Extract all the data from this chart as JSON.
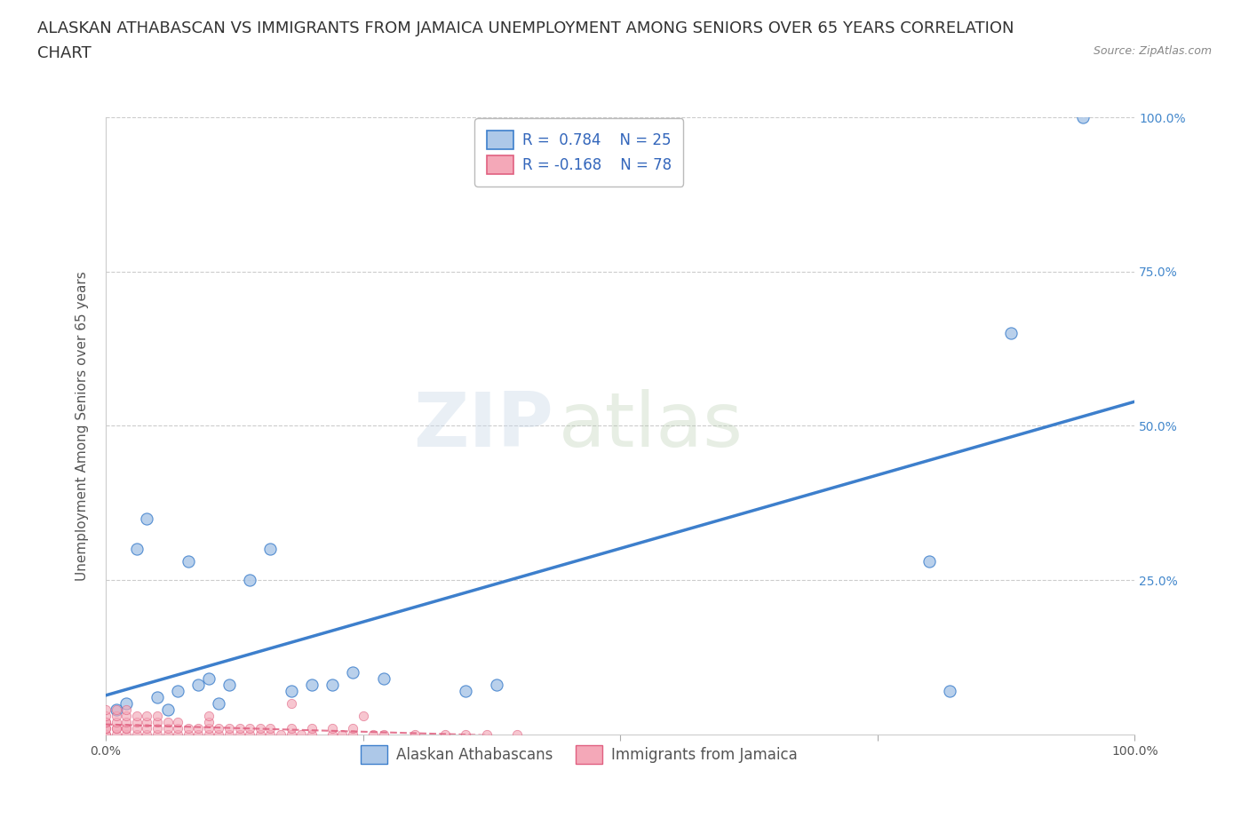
{
  "title_line1": "ALASKAN ATHABASCAN VS IMMIGRANTS FROM JAMAICA UNEMPLOYMENT AMONG SENIORS OVER 65 YEARS CORRELATION",
  "title_line2": "CHART",
  "source": "Source: ZipAtlas.com",
  "ylabel": "Unemployment Among Seniors over 65 years",
  "xlim": [
    0,
    1.0
  ],
  "ylim": [
    0,
    1.0
  ],
  "blue_R": 0.784,
  "blue_N": 25,
  "pink_R": -0.168,
  "pink_N": 78,
  "blue_color": "#adc8e8",
  "pink_color": "#f4a8b8",
  "blue_line_color": "#3d7fcc",
  "pink_line_color": "#e06080",
  "grid_color": "#cccccc",
  "background_color": "#ffffff",
  "watermark_zip": "ZIP",
  "watermark_atlas": "atlas",
  "legend_label_blue": "Alaskan Athabascans",
  "legend_label_pink": "Immigrants from Jamaica",
  "title_fontsize": 13,
  "axis_label_fontsize": 11,
  "tick_fontsize": 10,
  "legend_fontsize": 12,
  "blue_x": [
    0.01,
    0.02,
    0.03,
    0.04,
    0.05,
    0.06,
    0.07,
    0.08,
    0.09,
    0.1,
    0.11,
    0.12,
    0.14,
    0.16,
    0.18,
    0.2,
    0.22,
    0.24,
    0.27,
    0.35,
    0.38,
    0.8,
    0.82,
    0.88,
    0.95
  ],
  "blue_y": [
    0.04,
    0.05,
    0.3,
    0.35,
    0.06,
    0.04,
    0.07,
    0.28,
    0.08,
    0.09,
    0.05,
    0.08,
    0.25,
    0.3,
    0.07,
    0.08,
    0.08,
    0.1,
    0.09,
    0.07,
    0.08,
    0.28,
    0.07,
    0.65,
    1.0
  ],
  "pink_x": [
    0.0,
    0.0,
    0.0,
    0.0,
    0.0,
    0.0,
    0.0,
    0.0,
    0.01,
    0.01,
    0.01,
    0.01,
    0.01,
    0.01,
    0.02,
    0.02,
    0.02,
    0.02,
    0.02,
    0.02,
    0.03,
    0.03,
    0.03,
    0.03,
    0.04,
    0.04,
    0.04,
    0.04,
    0.05,
    0.05,
    0.05,
    0.05,
    0.06,
    0.06,
    0.06,
    0.07,
    0.07,
    0.07,
    0.08,
    0.08,
    0.09,
    0.09,
    0.1,
    0.1,
    0.1,
    0.11,
    0.11,
    0.12,
    0.12,
    0.13,
    0.13,
    0.14,
    0.14,
    0.15,
    0.15,
    0.16,
    0.16,
    0.17,
    0.18,
    0.18,
    0.19,
    0.2,
    0.2,
    0.22,
    0.22,
    0.23,
    0.24,
    0.24,
    0.26,
    0.27,
    0.3,
    0.33,
    0.35,
    0.37,
    0.4,
    0.18,
    0.25,
    0.1
  ],
  "pink_y": [
    0.0,
    0.0,
    0.01,
    0.01,
    0.02,
    0.02,
    0.03,
    0.04,
    0.0,
    0.01,
    0.01,
    0.02,
    0.03,
    0.04,
    0.0,
    0.01,
    0.01,
    0.02,
    0.03,
    0.04,
    0.0,
    0.01,
    0.02,
    0.03,
    0.0,
    0.01,
    0.02,
    0.03,
    0.0,
    0.01,
    0.02,
    0.03,
    0.0,
    0.01,
    0.02,
    0.0,
    0.01,
    0.02,
    0.0,
    0.01,
    0.0,
    0.01,
    0.0,
    0.01,
    0.02,
    0.0,
    0.01,
    0.0,
    0.01,
    0.0,
    0.01,
    0.0,
    0.01,
    0.0,
    0.01,
    0.0,
    0.01,
    0.0,
    0.0,
    0.01,
    0.0,
    0.0,
    0.01,
    0.0,
    0.01,
    0.0,
    0.0,
    0.01,
    0.0,
    0.0,
    0.0,
    0.0,
    0.0,
    0.0,
    0.0,
    0.05,
    0.03,
    0.03
  ]
}
